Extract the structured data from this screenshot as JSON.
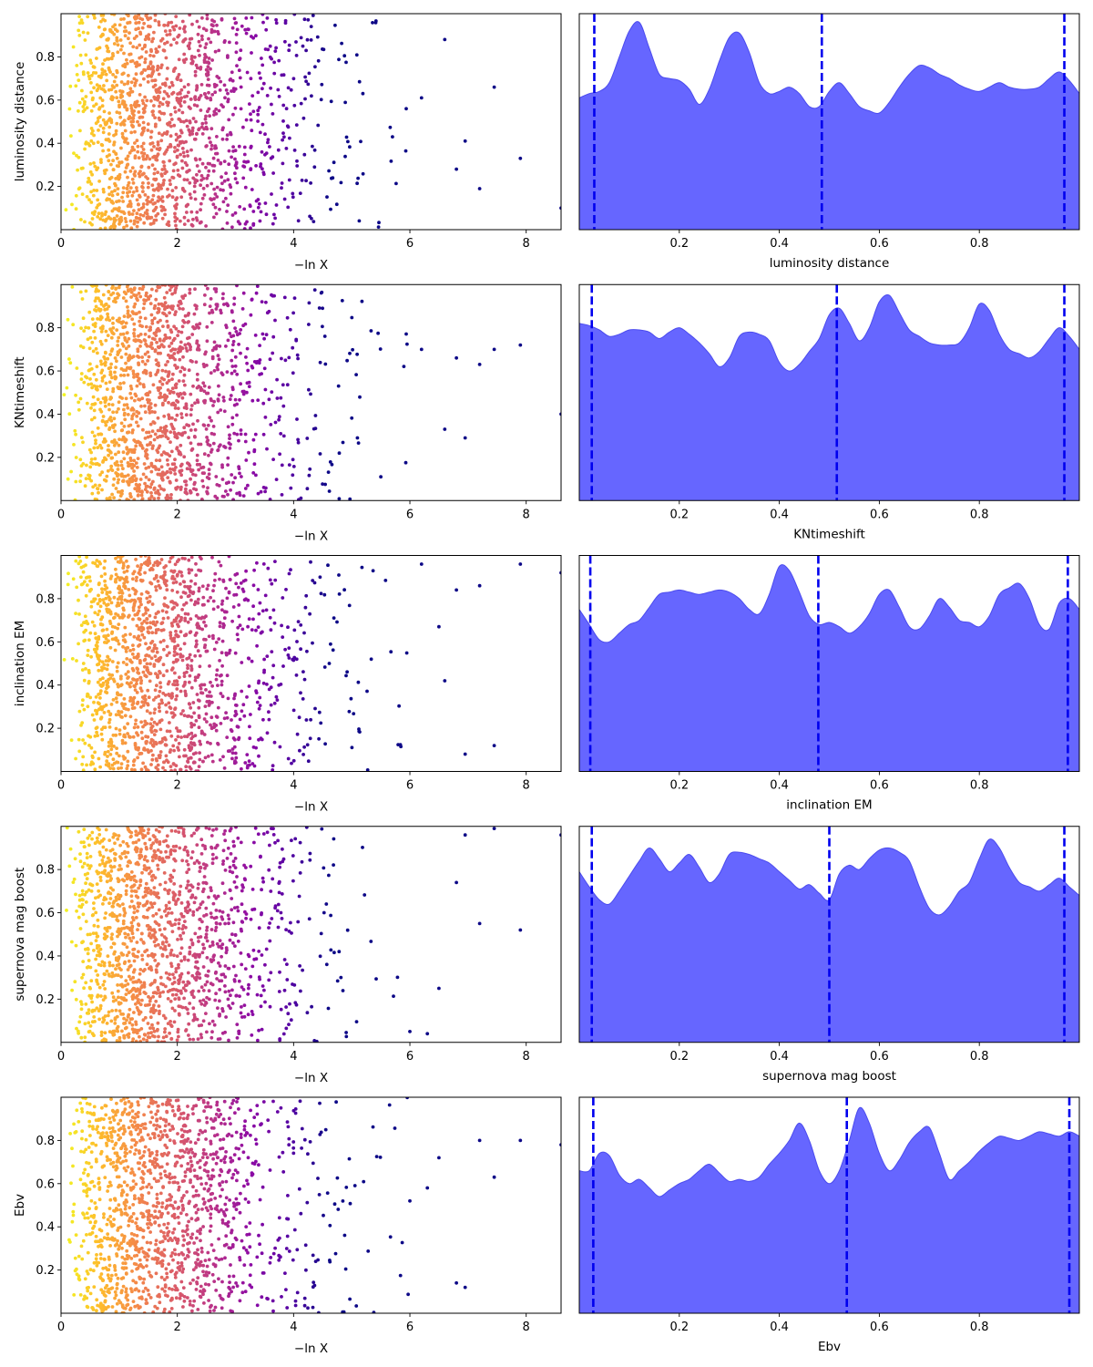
{
  "figure": {
    "rows": 5,
    "scatter_xlabel": "−ln X",
    "scatter_xticks": [
      "0",
      "2",
      "4",
      "6",
      "8"
    ],
    "density_xticks": [
      "0.2",
      "0.4",
      "0.6",
      "0.8"
    ],
    "y_ticks": [
      "0.2",
      "0.4",
      "0.6",
      "0.8"
    ]
  },
  "colors": {
    "kde_fill": "#6666ff",
    "kde_edge": "#4b4bee",
    "vline": "#0000ee",
    "colormap": "plasma"
  },
  "chart_data": [
    {
      "type": "scatter",
      "panel": "row1-left",
      "ylabel": "luminosity distance",
      "xlabel": "−ln X",
      "xlim": [
        0,
        8.6
      ],
      "ylim": [
        0,
        1
      ],
      "color_encoding": "plasma colormap by −ln X",
      "n_points": 1500,
      "seed": 11,
      "outliers": [
        [
          8.6,
          0.1
        ],
        [
          7.9,
          0.33
        ],
        [
          7.45,
          0.66
        ],
        [
          7.2,
          0.19
        ],
        [
          6.95,
          0.41
        ],
        [
          6.8,
          0.28
        ],
        [
          6.6,
          0.88
        ],
        [
          6.2,
          0.61
        ],
        [
          5.7,
          0.43
        ]
      ]
    },
    {
      "type": "area",
      "panel": "row1-right",
      "xlabel": "luminosity distance",
      "xlim": [
        0,
        1
      ],
      "ylim": [
        0,
        1
      ],
      "quantile_lines": [
        0.03,
        0.485,
        0.97
      ],
      "x": [
        0.0,
        0.02,
        0.04,
        0.06,
        0.08,
        0.1,
        0.12,
        0.14,
        0.16,
        0.18,
        0.2,
        0.22,
        0.24,
        0.26,
        0.28,
        0.3,
        0.32,
        0.34,
        0.36,
        0.38,
        0.4,
        0.42,
        0.44,
        0.46,
        0.48,
        0.5,
        0.52,
        0.54,
        0.56,
        0.58,
        0.6,
        0.62,
        0.64,
        0.66,
        0.68,
        0.7,
        0.72,
        0.74,
        0.76,
        0.78,
        0.8,
        0.82,
        0.84,
        0.86,
        0.88,
        0.9,
        0.92,
        0.94,
        0.96,
        0.98,
        1.0
      ],
      "y": [
        0.61,
        0.63,
        0.64,
        0.68,
        0.8,
        0.92,
        0.96,
        0.84,
        0.72,
        0.7,
        0.69,
        0.65,
        0.58,
        0.65,
        0.78,
        0.89,
        0.91,
        0.82,
        0.68,
        0.63,
        0.64,
        0.66,
        0.63,
        0.57,
        0.57,
        0.64,
        0.68,
        0.63,
        0.57,
        0.55,
        0.54,
        0.59,
        0.66,
        0.72,
        0.76,
        0.75,
        0.72,
        0.7,
        0.67,
        0.65,
        0.64,
        0.66,
        0.68,
        0.66,
        0.65,
        0.65,
        0.66,
        0.7,
        0.73,
        0.69,
        0.63
      ]
    },
    {
      "type": "scatter",
      "panel": "row2-left",
      "ylabel": "KNtimeshift",
      "xlabel": "−ln X",
      "xlim": [
        0,
        8.6
      ],
      "ylim": [
        0,
        1
      ],
      "color_encoding": "plasma colormap by −ln X",
      "n_points": 1500,
      "seed": 23,
      "outliers": [
        [
          8.6,
          0.4
        ],
        [
          7.9,
          0.72
        ],
        [
          7.45,
          0.7
        ],
        [
          7.2,
          0.63
        ],
        [
          6.95,
          0.29
        ],
        [
          6.8,
          0.66
        ],
        [
          6.6,
          0.33
        ],
        [
          6.2,
          0.7
        ],
        [
          5.5,
          0.11
        ]
      ]
    },
    {
      "type": "area",
      "panel": "row2-right",
      "xlabel": "KNtimeshift",
      "xlim": [
        0,
        1
      ],
      "ylim": [
        0,
        1
      ],
      "quantile_lines": [
        0.025,
        0.515,
        0.97
      ],
      "x": [
        0.0,
        0.02,
        0.04,
        0.06,
        0.08,
        0.1,
        0.12,
        0.14,
        0.16,
        0.18,
        0.2,
        0.22,
        0.24,
        0.26,
        0.28,
        0.3,
        0.32,
        0.34,
        0.36,
        0.38,
        0.4,
        0.42,
        0.44,
        0.46,
        0.48,
        0.5,
        0.52,
        0.54,
        0.56,
        0.58,
        0.6,
        0.62,
        0.64,
        0.66,
        0.68,
        0.7,
        0.72,
        0.74,
        0.76,
        0.78,
        0.8,
        0.82,
        0.84,
        0.86,
        0.88,
        0.9,
        0.92,
        0.94,
        0.96,
        0.98,
        1.0
      ],
      "y": [
        0.82,
        0.81,
        0.79,
        0.76,
        0.77,
        0.79,
        0.79,
        0.78,
        0.75,
        0.78,
        0.8,
        0.77,
        0.73,
        0.68,
        0.62,
        0.66,
        0.76,
        0.78,
        0.77,
        0.74,
        0.64,
        0.6,
        0.63,
        0.69,
        0.75,
        0.86,
        0.89,
        0.82,
        0.74,
        0.8,
        0.92,
        0.95,
        0.87,
        0.79,
        0.76,
        0.73,
        0.72,
        0.72,
        0.73,
        0.8,
        0.91,
        0.88,
        0.77,
        0.7,
        0.68,
        0.66,
        0.69,
        0.75,
        0.8,
        0.76,
        0.7
      ]
    },
    {
      "type": "scatter",
      "panel": "row3-left",
      "ylabel": "inclination EM",
      "xlabel": "−ln X",
      "xlim": [
        0,
        8.6
      ],
      "ylim": [
        0,
        1
      ],
      "color_encoding": "plasma colormap by −ln X",
      "n_points": 1500,
      "seed": 37,
      "outliers": [
        [
          8.6,
          0.92
        ],
        [
          7.9,
          0.96
        ],
        [
          7.45,
          0.12
        ],
        [
          7.2,
          0.86
        ],
        [
          6.95,
          0.08
        ],
        [
          6.8,
          0.84
        ],
        [
          6.6,
          0.42
        ],
        [
          6.5,
          0.67
        ],
        [
          6.2,
          0.96
        ]
      ]
    },
    {
      "type": "area",
      "panel": "row3-right",
      "xlabel": "inclination EM",
      "xlim": [
        0,
        1
      ],
      "ylim": [
        0,
        1
      ],
      "quantile_lines": [
        0.022,
        0.478,
        0.977
      ],
      "x": [
        0.0,
        0.02,
        0.04,
        0.06,
        0.08,
        0.1,
        0.12,
        0.14,
        0.16,
        0.18,
        0.2,
        0.22,
        0.24,
        0.26,
        0.28,
        0.3,
        0.32,
        0.34,
        0.36,
        0.38,
        0.4,
        0.42,
        0.44,
        0.46,
        0.48,
        0.5,
        0.52,
        0.54,
        0.56,
        0.58,
        0.6,
        0.62,
        0.64,
        0.66,
        0.68,
        0.7,
        0.72,
        0.74,
        0.76,
        0.78,
        0.8,
        0.82,
        0.84,
        0.86,
        0.88,
        0.9,
        0.92,
        0.94,
        0.96,
        0.98,
        1.0
      ],
      "y": [
        0.75,
        0.68,
        0.61,
        0.6,
        0.64,
        0.68,
        0.7,
        0.76,
        0.82,
        0.83,
        0.84,
        0.83,
        0.82,
        0.83,
        0.84,
        0.83,
        0.8,
        0.75,
        0.73,
        0.82,
        0.95,
        0.93,
        0.83,
        0.72,
        0.68,
        0.69,
        0.67,
        0.64,
        0.67,
        0.73,
        0.82,
        0.84,
        0.76,
        0.67,
        0.66,
        0.72,
        0.8,
        0.76,
        0.7,
        0.69,
        0.67,
        0.72,
        0.82,
        0.85,
        0.87,
        0.8,
        0.68,
        0.66,
        0.78,
        0.8,
        0.75
      ]
    },
    {
      "type": "scatter",
      "panel": "row4-left",
      "ylabel": "supernova mag boost",
      "xlabel": "−ln X",
      "xlim": [
        0,
        8.6
      ],
      "ylim": [
        0,
        1
      ],
      "color_encoding": "plasma colormap by −ln X",
      "n_points": 1500,
      "seed": 53,
      "outliers": [
        [
          8.6,
          0.96
        ],
        [
          7.9,
          0.52
        ],
        [
          7.45,
          0.99
        ],
        [
          7.2,
          0.55
        ],
        [
          6.95,
          0.96
        ],
        [
          6.8,
          0.74
        ],
        [
          6.5,
          0.25
        ],
        [
          6.3,
          0.04
        ],
        [
          6.0,
          0.05
        ]
      ]
    },
    {
      "type": "area",
      "panel": "row4-right",
      "xlabel": "supernova mag boost",
      "xlim": [
        0,
        1
      ],
      "ylim": [
        0,
        1
      ],
      "quantile_lines": [
        0.025,
        0.5,
        0.97
      ],
      "x": [
        0.0,
        0.02,
        0.04,
        0.06,
        0.08,
        0.1,
        0.12,
        0.14,
        0.16,
        0.18,
        0.2,
        0.22,
        0.24,
        0.26,
        0.28,
        0.3,
        0.32,
        0.34,
        0.36,
        0.38,
        0.4,
        0.42,
        0.44,
        0.46,
        0.48,
        0.5,
        0.52,
        0.54,
        0.56,
        0.58,
        0.6,
        0.62,
        0.64,
        0.66,
        0.68,
        0.7,
        0.72,
        0.74,
        0.76,
        0.78,
        0.8,
        0.82,
        0.84,
        0.86,
        0.88,
        0.9,
        0.92,
        0.94,
        0.96,
        0.98,
        1.0
      ],
      "y": [
        0.79,
        0.72,
        0.66,
        0.64,
        0.7,
        0.77,
        0.84,
        0.9,
        0.85,
        0.79,
        0.83,
        0.87,
        0.81,
        0.74,
        0.78,
        0.87,
        0.88,
        0.87,
        0.85,
        0.83,
        0.79,
        0.75,
        0.71,
        0.73,
        0.69,
        0.66,
        0.78,
        0.82,
        0.8,
        0.85,
        0.89,
        0.9,
        0.88,
        0.84,
        0.72,
        0.62,
        0.59,
        0.63,
        0.7,
        0.74,
        0.85,
        0.94,
        0.9,
        0.81,
        0.74,
        0.72,
        0.7,
        0.73,
        0.76,
        0.72,
        0.68
      ]
    },
    {
      "type": "scatter",
      "panel": "row5-left",
      "ylabel": "Ebv",
      "xlabel": "−ln X",
      "xlim": [
        0,
        8.6
      ],
      "ylim": [
        0,
        1
      ],
      "color_encoding": "plasma colormap by −ln X",
      "n_points": 1500,
      "seed": 71,
      "outliers": [
        [
          8.6,
          0.78
        ],
        [
          7.9,
          0.8
        ],
        [
          7.45,
          0.63
        ],
        [
          7.2,
          0.8
        ],
        [
          6.95,
          0.12
        ],
        [
          6.8,
          0.14
        ],
        [
          6.5,
          0.72
        ],
        [
          6.3,
          0.58
        ],
        [
          6.0,
          0.52
        ]
      ]
    },
    {
      "type": "area",
      "panel": "row5-right",
      "xlabel": "Ebv",
      "xlim": [
        0,
        1
      ],
      "ylim": [
        0,
        1
      ],
      "quantile_lines": [
        0.028,
        0.535,
        0.98
      ],
      "x": [
        0.0,
        0.02,
        0.04,
        0.06,
        0.08,
        0.1,
        0.12,
        0.14,
        0.16,
        0.18,
        0.2,
        0.22,
        0.24,
        0.26,
        0.28,
        0.3,
        0.32,
        0.34,
        0.36,
        0.38,
        0.4,
        0.42,
        0.44,
        0.46,
        0.48,
        0.5,
        0.52,
        0.54,
        0.56,
        0.58,
        0.6,
        0.62,
        0.64,
        0.66,
        0.68,
        0.7,
        0.72,
        0.74,
        0.76,
        0.78,
        0.8,
        0.82,
        0.84,
        0.86,
        0.88,
        0.9,
        0.92,
        0.94,
        0.96,
        0.98,
        1.0
      ],
      "y": [
        0.66,
        0.66,
        0.74,
        0.73,
        0.64,
        0.6,
        0.62,
        0.58,
        0.54,
        0.57,
        0.6,
        0.62,
        0.66,
        0.69,
        0.65,
        0.61,
        0.62,
        0.61,
        0.63,
        0.69,
        0.74,
        0.8,
        0.88,
        0.8,
        0.66,
        0.6,
        0.66,
        0.8,
        0.95,
        0.88,
        0.74,
        0.66,
        0.71,
        0.79,
        0.84,
        0.86,
        0.74,
        0.62,
        0.66,
        0.7,
        0.75,
        0.79,
        0.82,
        0.81,
        0.8,
        0.82,
        0.84,
        0.83,
        0.82,
        0.84,
        0.82
      ]
    }
  ]
}
